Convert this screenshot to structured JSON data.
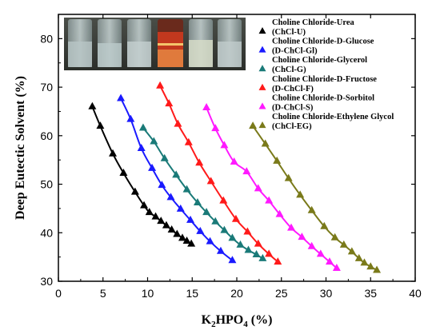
{
  "chart_data": {
    "type": "scatter",
    "xlabel": "K2HPO4 (%)",
    "ylabel": "Deep Eutectic Solvent (%)",
    "xlim": [
      0,
      40
    ],
    "ylim": [
      30,
      85
    ],
    "xticks": [
      0,
      5,
      10,
      15,
      20,
      25,
      30,
      35,
      40
    ],
    "yticks": [
      30,
      40,
      50,
      60,
      70,
      80
    ],
    "x_tick_labels": [
      "0",
      "5",
      "10",
      "15",
      "20",
      "25",
      "30",
      "35",
      "40"
    ],
    "y_tick_labels": [
      "30",
      "40",
      "50",
      "60",
      "70",
      "80"
    ],
    "grid": false,
    "legend_position": "top-right",
    "inset": "photograph of six sample vials",
    "series": [
      {
        "name": "Choline Chloride-Urea (ChCl-U)",
        "name_line1": "Choline Chloride-Urea",
        "name_line2": "(ChCl-U)",
        "color": "#000000",
        "marker": "triangle",
        "x": [
          3.8,
          4.7,
          6.1,
          7.3,
          8.6,
          9.6,
          10.2,
          10.9,
          11.5,
          12.1,
          12.7,
          13.3,
          13.9,
          14.4,
          14.9
        ],
        "y": [
          66.0,
          62.0,
          56.3,
          52.3,
          48.4,
          45.6,
          44.2,
          43.3,
          42.4,
          41.5,
          40.6,
          39.7,
          38.9,
          38.3,
          37.7
        ]
      },
      {
        "name": "Choline Chloride-D-Glucose (D-ChCl-Gl)",
        "name_line1": "Choline Chloride-D-Glucose",
        "name_line2": "(D-ChCl-Gl)",
        "color": "#1a1aff",
        "marker": "triangle",
        "x": [
          7.0,
          8.1,
          9.3,
          10.5,
          11.6,
          12.6,
          13.7,
          14.8,
          15.9,
          17.0,
          18.2,
          19.5
        ],
        "y": [
          67.7,
          63.4,
          57.4,
          53.3,
          49.8,
          47.3,
          44.9,
          42.6,
          40.3,
          38.2,
          36.2,
          34.3
        ]
      },
      {
        "name": "Choline Chloride-Glycerol (ChCl-G)",
        "name_line1": "Choline Chloride-Glycerol",
        "name_line2": "(ChCl-G)",
        "color": "#1a7a78",
        "marker": "triangle",
        "x": [
          9.5,
          10.7,
          11.9,
          13.2,
          14.4,
          15.6,
          16.6,
          17.6,
          18.6,
          19.5,
          20.4,
          21.3,
          22.2,
          22.9
        ],
        "y": [
          61.6,
          58.8,
          55.3,
          51.9,
          48.9,
          46.2,
          44.2,
          42.3,
          40.5,
          38.9,
          37.5,
          36.4,
          35.5,
          34.7
        ]
      },
      {
        "name": "Choline Chloride-D-Fructose (D-ChCl-F)",
        "name_line1": "Choline Chloride-D-Fructose",
        "name_line2": "(D-ChCl-F)",
        "color": "#ff1a1a",
        "marker": "triangle",
        "x": [
          11.4,
          12.4,
          13.4,
          14.6,
          15.8,
          17.1,
          18.5,
          19.9,
          21.2,
          22.4,
          23.6,
          24.6
        ],
        "y": [
          70.3,
          66.6,
          62.4,
          58.6,
          54.4,
          50.6,
          46.6,
          42.8,
          40.2,
          37.7,
          35.6,
          34.0
        ]
      },
      {
        "name": "Choline Chloride-D-Sorbitol (D-ChCl-S)",
        "name_line1": "Choline Chloride-D-Sorbitol",
        "name_line2": "(D-ChCl-S)",
        "color": "#ff1aff",
        "marker": "triangle",
        "x": [
          16.6,
          17.6,
          18.6,
          19.7,
          21.1,
          22.4,
          23.6,
          24.8,
          26.1,
          27.3,
          28.4,
          29.4,
          30.4,
          31.2
        ],
        "y": [
          65.8,
          61.5,
          58.0,
          54.6,
          52.6,
          49.1,
          46.6,
          43.8,
          41.0,
          39.1,
          37.2,
          35.6,
          34.0,
          32.7
        ]
      },
      {
        "name": "Choline Chloride-Ethylene Glycol (ChCl-EG)",
        "name_line1": "Choline Chloride-Ethylene Glycol",
        "name_line2": "(ChCl-EG)",
        "color": "#7a7a1a",
        "marker": "triangle",
        "x": [
          21.8,
          23.2,
          24.5,
          25.8,
          27.1,
          28.4,
          29.8,
          31.0,
          32.0,
          32.9,
          33.7,
          34.3,
          35.0,
          35.7
        ],
        "y": [
          62.0,
          58.3,
          54.8,
          51.2,
          47.8,
          44.6,
          41.3,
          39.0,
          37.5,
          36.1,
          34.7,
          33.8,
          33.0,
          32.3
        ]
      }
    ]
  }
}
